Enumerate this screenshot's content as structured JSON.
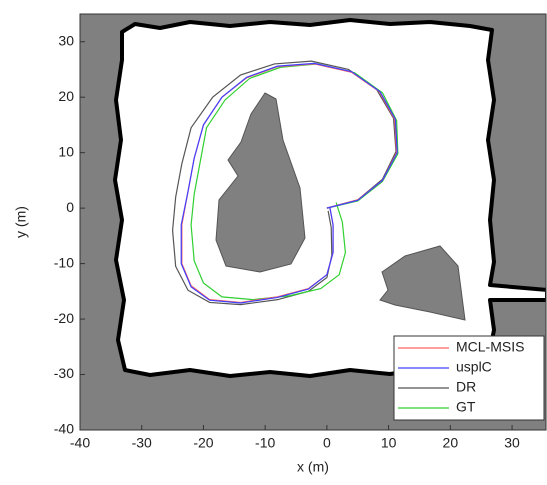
{
  "chart_data": {
    "type": "line",
    "xlabel": "x (m)",
    "ylabel": "y (m)",
    "xlim": [
      -40,
      35.5
    ],
    "ylim": [
      -40,
      35
    ],
    "xticks": [
      -40,
      -30,
      -20,
      -10,
      0,
      10,
      20,
      30
    ],
    "yticks": [
      -40,
      -30,
      -20,
      -10,
      0,
      10,
      20,
      30
    ],
    "legend": "lower right",
    "series": [
      {
        "name": "MCL-MSIS",
        "color": "#ff6060",
        "x": [
          0,
          5,
          9,
          11.3,
          11,
          8.5,
          4,
          -2,
          -8,
          -13,
          -17,
          -20,
          -21.5,
          -22.5,
          -23.5,
          -23.5,
          -22,
          -19,
          -14,
          -8,
          -3,
          0,
          1,
          1,
          0.5
        ],
        "values": [
          0,
          1.5,
          5,
          10,
          16,
          21,
          24.5,
          26,
          25.5,
          23.5,
          20,
          15,
          9,
          3,
          -3,
          -10,
          -14,
          -16.5,
          -17,
          -16,
          -14.5,
          -12,
          -8,
          -3,
          0
        ]
      },
      {
        "name": "usplC",
        "color": "#4040ff",
        "x": [
          0,
          5,
          9,
          11.4,
          11.1,
          8.6,
          4,
          -2,
          -8,
          -13,
          -17,
          -20,
          -21.5,
          -22.5,
          -23.6,
          -23.6,
          -22,
          -19,
          -14,
          -8,
          -3,
          0,
          1,
          1,
          0.5
        ],
        "values": [
          0,
          1.4,
          5,
          10,
          16,
          21,
          24.6,
          26.1,
          25.6,
          23.6,
          20,
          15,
          9,
          3,
          -3,
          -10,
          -14.2,
          -16.6,
          -17.1,
          -16.1,
          -14.6,
          -12,
          -8,
          -3,
          0
        ]
      },
      {
        "name": "DR",
        "color": "#555555",
        "x": [
          0,
          5,
          9,
          11.2,
          10.8,
          8,
          3.5,
          -2.5,
          -8.5,
          -14,
          -18.5,
          -22,
          -23.5,
          -24.5,
          -25,
          -24.5,
          -22.5,
          -19,
          -14,
          -8,
          -3,
          0,
          0.8,
          0.7,
          0.2
        ],
        "values": [
          0,
          1.5,
          5.2,
          10.2,
          16.2,
          21.5,
          25,
          26.5,
          26,
          24,
          20,
          14.5,
          8,
          2,
          -4,
          -10.5,
          -14.8,
          -17,
          -17.4,
          -16.5,
          -15,
          -12.5,
          -8.5,
          -3.5,
          -0.5
        ]
      },
      {
        "name": "GT",
        "color": "#30d030",
        "x": [
          0,
          5,
          9,
          11.5,
          11.3,
          9,
          4.5,
          -1.5,
          -7.5,
          -12.5,
          -16.5,
          -19.5,
          -20.5,
          -21.5,
          -22,
          -21.5,
          -20,
          -17,
          -12,
          -6,
          -1,
          2,
          3,
          2.5,
          1.5
        ],
        "values": [
          0,
          1.3,
          4.8,
          9.8,
          15.8,
          20.8,
          24.4,
          26,
          25.4,
          23.4,
          19.5,
          14.5,
          8.5,
          2.5,
          -3,
          -9.5,
          -13.5,
          -16,
          -16.5,
          -15.8,
          -14.5,
          -12,
          -8,
          -2.5,
          1
        ]
      }
    ]
  }
}
